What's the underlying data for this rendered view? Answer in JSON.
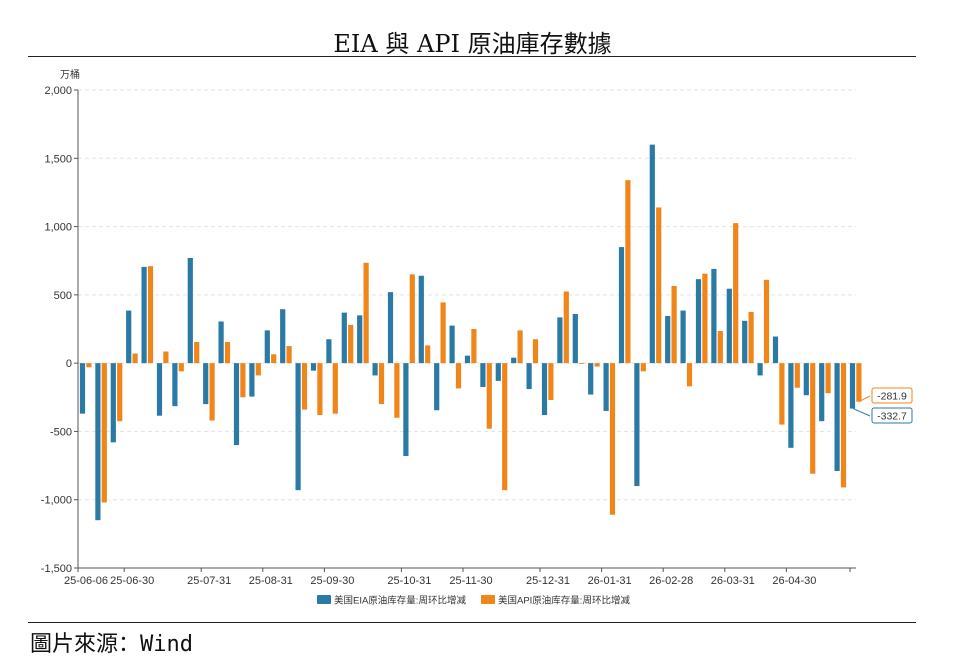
{
  "page": {
    "title": "EIA 與 API 原油庫存數據",
    "source": "圖片來源：Wind"
  },
  "colors": {
    "eia": "#2b7aa6",
    "api": "#f0861a",
    "grid": "#e3e3e3",
    "axis": "#555555"
  },
  "chart_data": {
    "type": "bar",
    "unit_label": "万桶",
    "ylim": [
      -1500,
      2000
    ],
    "yticks": [
      -1500,
      -1000,
      -500,
      0,
      500,
      1000,
      1500,
      2000
    ],
    "ytick_labels": [
      "-1,500",
      "-1,000",
      "-500",
      "0",
      "500",
      "1,000",
      "1,500",
      "2,000"
    ],
    "xtick_labels": [
      {
        "label": "25-06-06",
        "index": 0
      },
      {
        "label": "25-06-30",
        "index": 3
      },
      {
        "label": "25-07-31",
        "index": 8
      },
      {
        "label": "25-08-31",
        "index": 12
      },
      {
        "label": "25-09-30",
        "index": 16
      },
      {
        "label": "25-10-31",
        "index": 21
      },
      {
        "label": "25-11-30",
        "index": 25
      },
      {
        "label": "25-12-31",
        "index": 30
      },
      {
        "label": "26-01-31",
        "index": 34
      },
      {
        "label": "26-02-28",
        "index": 38
      },
      {
        "label": "26-03-31",
        "index": 42
      },
      {
        "label": "26-04-30",
        "index": 46
      }
    ],
    "grid": true,
    "legend_position": "bottom-center",
    "series": [
      {
        "name": "美国EIA原油库存量:周环比增减",
        "values": [
          -370,
          -1150,
          -580,
          385,
          705,
          -385,
          -315,
          770,
          -300,
          305,
          -600,
          -245,
          240,
          395,
          -930,
          -55,
          175,
          370,
          350,
          -90,
          520,
          -680,
          640,
          -345,
          275,
          55,
          -175,
          -130,
          40,
          -190,
          -380,
          335,
          360,
          -230,
          -350,
          850,
          -900,
          1600,
          345,
          385,
          615,
          690,
          545,
          310,
          -90,
          195,
          -620,
          -235,
          -425,
          -790,
          -332.7
        ]
      },
      {
        "name": "美国API原油库存量:周环比增减",
        "values": [
          -30,
          -1020,
          -425,
          70,
          710,
          85,
          -60,
          155,
          -420,
          155,
          -250,
          -90,
          65,
          125,
          -340,
          -380,
          -370,
          280,
          735,
          -300,
          -400,
          650,
          130,
          445,
          -185,
          250,
          -480,
          -930,
          240,
          175,
          -270,
          525,
          0,
          -25,
          -1110,
          1340,
          -60,
          1140,
          565,
          -170,
          655,
          235,
          1025,
          375,
          610,
          -450,
          -180,
          -810,
          -220,
          -910,
          -281.9
        ]
      }
    ],
    "annotations": [
      "-281.9",
      "-332.7"
    ]
  }
}
